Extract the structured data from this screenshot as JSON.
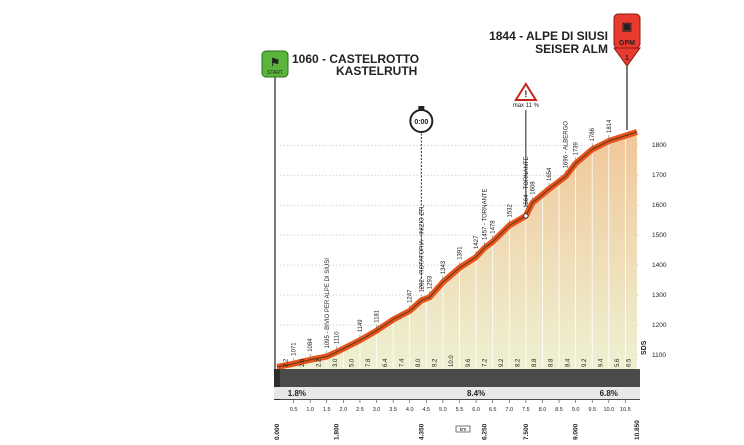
{
  "start": {
    "altitude_name": "1060 - CASTELROTTO",
    "alt_name": "KASTELRUTH",
    "badge": "START"
  },
  "finish": {
    "altitude_name": "1844 - ALPE DI SIUSI",
    "alt_name": "SEISER ALM",
    "badge": "GPM",
    "badge_number": "1"
  },
  "chrono_label": "0:00",
  "max_grade_label": "max 11 %",
  "distance_unit": "km",
  "axis_label": "SDS",
  "right_axis_ticks": [
    "1100",
    "1200",
    "1300",
    "1400",
    "1500",
    "1600",
    "1700",
    "1800"
  ],
  "chart_data": {
    "type": "area",
    "title": "",
    "xlabel": "",
    "ylabel": "",
    "ylim": [
      1000,
      1850
    ],
    "xlim": [
      0,
      10.85
    ],
    "profile": [
      {
        "x": 0.0,
        "y": 1060
      },
      {
        "x": 0.5,
        "y": 1071
      },
      {
        "x": 1.0,
        "y": 1084
      },
      {
        "x": 1.5,
        "y": 1095
      },
      {
        "x": 1.8,
        "y": 1110
      },
      {
        "x": 2.5,
        "y": 1149
      },
      {
        "x": 3.0,
        "y": 1181
      },
      {
        "x": 3.5,
        "y": 1218
      },
      {
        "x": 4.0,
        "y": 1247
      },
      {
        "x": 4.35,
        "y": 1282
      },
      {
        "x": 4.6,
        "y": 1293
      },
      {
        "x": 5.0,
        "y": 1343
      },
      {
        "x": 5.5,
        "y": 1391
      },
      {
        "x": 6.0,
        "y": 1427
      },
      {
        "x": 6.25,
        "y": 1457
      },
      {
        "x": 6.5,
        "y": 1478
      },
      {
        "x": 7.0,
        "y": 1532
      },
      {
        "x": 7.5,
        "y": 1564
      },
      {
        "x": 7.7,
        "y": 1608
      },
      {
        "x": 8.2,
        "y": 1654
      },
      {
        "x": 8.7,
        "y": 1696
      },
      {
        "x": 9.0,
        "y": 1739
      },
      {
        "x": 9.5,
        "y": 1786
      },
      {
        "x": 10.0,
        "y": 1814
      },
      {
        "x": 10.85,
        "y": 1844
      }
    ],
    "altitude_labels": [
      {
        "x": 0.5,
        "text": "1071"
      },
      {
        "x": 1.0,
        "text": "1084"
      },
      {
        "x": 1.5,
        "text": "1095 - BIVIO PER ALPE DI SIUSI"
      },
      {
        "x": 1.8,
        "text": "1110"
      },
      {
        "x": 2.5,
        "text": "1149"
      },
      {
        "x": 3.0,
        "text": "1181"
      },
      {
        "x": 4.0,
        "text": "1247"
      },
      {
        "x": 4.35,
        "text": "1282 - ROTATORIA - INIZIO ZTL"
      },
      {
        "x": 4.6,
        "text": "1293"
      },
      {
        "x": 5.0,
        "text": "1343"
      },
      {
        "x": 5.5,
        "text": "1391"
      },
      {
        "x": 6.0,
        "text": "1427"
      },
      {
        "x": 6.25,
        "text": "1457 - TORNANTE"
      },
      {
        "x": 6.5,
        "text": "1478"
      },
      {
        "x": 7.0,
        "text": "1532"
      },
      {
        "x": 7.5,
        "text": "1564 - TORNANTE"
      },
      {
        "x": 7.7,
        "text": "1608"
      },
      {
        "x": 8.2,
        "text": "1654"
      },
      {
        "x": 8.7,
        "text": "1696 - ALBERGO"
      },
      {
        "x": 9.0,
        "text": "1739"
      },
      {
        "x": 9.5,
        "text": "1786"
      },
      {
        "x": 10.0,
        "text": "1814"
      }
    ],
    "segment_gradients": [
      {
        "x": 0.25,
        "text": "2.2"
      },
      {
        "x": 0.75,
        "text": "2.6"
      },
      {
        "x": 1.25,
        "text": "2.2"
      },
      {
        "x": 1.75,
        "text": "3.0"
      },
      {
        "x": 2.25,
        "text": "5.0"
      },
      {
        "x": 2.75,
        "text": "7.8"
      },
      {
        "x": 3.25,
        "text": "6.4"
      },
      {
        "x": 3.75,
        "text": "7.4"
      },
      {
        "x": 4.25,
        "text": "8.0"
      },
      {
        "x": 4.75,
        "text": "9.2"
      },
      {
        "x": 5.25,
        "text": "10.0"
      },
      {
        "x": 5.75,
        "text": "9.6"
      },
      {
        "x": 6.25,
        "text": "7.2"
      },
      {
        "x": 6.75,
        "text": "9.2"
      },
      {
        "x": 7.25,
        "text": "8.2"
      },
      {
        "x": 7.75,
        "text": "8.8"
      },
      {
        "x": 8.25,
        "text": "8.8"
      },
      {
        "x": 8.75,
        "text": "8.4"
      },
      {
        "x": 9.25,
        "text": "9.2"
      },
      {
        "x": 9.75,
        "text": "9.4"
      },
      {
        "x": 10.25,
        "text": "5.6"
      },
      {
        "x": 10.6,
        "text": "6.5"
      }
    ],
    "avg_gradients": [
      {
        "x": 0.6,
        "text": "1.8%"
      },
      {
        "x": 6.0,
        "text": "8.4%"
      },
      {
        "x": 10.0,
        "text": "6.8%"
      }
    ],
    "km_ticks": [
      {
        "x": 0.5,
        "text": "0.5"
      },
      {
        "x": 1.0,
        "text": "1.0"
      },
      {
        "x": 1.5,
        "text": "1.5"
      },
      {
        "x": 2.0,
        "text": "2.0"
      },
      {
        "x": 2.5,
        "text": "2.5"
      },
      {
        "x": 3.0,
        "text": "3.0"
      },
      {
        "x": 3.5,
        "text": "3.5"
      },
      {
        "x": 4.0,
        "text": "4.0"
      },
      {
        "x": 4.5,
        "text": "4.5"
      },
      {
        "x": 5.0,
        "text": "5.0"
      },
      {
        "x": 5.5,
        "text": "5.5"
      },
      {
        "x": 6.0,
        "text": "6.0"
      },
      {
        "x": 6.5,
        "text": "6.5"
      },
      {
        "x": 7.0,
        "text": "7.0"
      },
      {
        "x": 7.5,
        "text": "7.5"
      },
      {
        "x": 8.0,
        "text": "8.0"
      },
      {
        "x": 8.5,
        "text": "8.5"
      },
      {
        "x": 9.0,
        "text": "9.0"
      },
      {
        "x": 9.5,
        "text": "9.5"
      },
      {
        "x": 10.0,
        "text": "10.0"
      },
      {
        "x": 10.5,
        "text": "10.5"
      }
    ],
    "key_distances": [
      {
        "x": 0.0,
        "text": "0.000"
      },
      {
        "x": 1.8,
        "text": "1.800"
      },
      {
        "x": 4.35,
        "text": "4.350"
      },
      {
        "x": 6.25,
        "text": "6.250"
      },
      {
        "x": 7.5,
        "text": "7.500"
      },
      {
        "x": 9.0,
        "text": "9.000"
      },
      {
        "x": 10.85,
        "text": "10.850"
      }
    ],
    "markers": {
      "chrono_x": 4.35,
      "max_grade_x": 7.5
    },
    "colors": {
      "profile_top": "#e8531b",
      "fill_top": "#f0c79a",
      "fill_bottom": "#eef1d2",
      "band": "#4a4a4a",
      "band_left": "#2e2e2e",
      "start_badge": "#5bb53d",
      "finish_badge": "#e83a2e"
    }
  }
}
